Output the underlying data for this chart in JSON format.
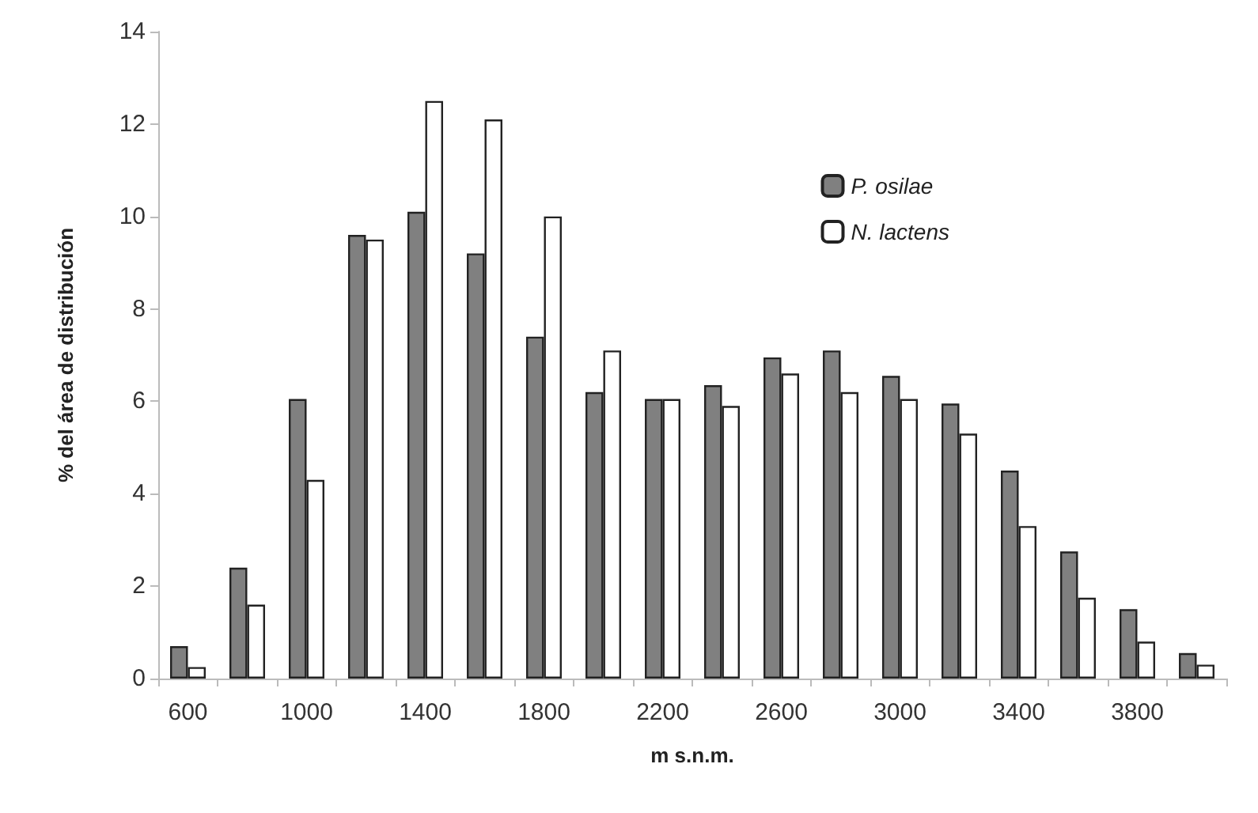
{
  "chart_data": {
    "type": "bar",
    "xlabel": "m s.n.m.",
    "ylabel": "% del área de distribución",
    "categories": [
      "600",
      null,
      "1000",
      null,
      "1400",
      null,
      "1800",
      null,
      "2200",
      null,
      "2600",
      null,
      "3000",
      null,
      "3400",
      null,
      "3800",
      null
    ],
    "series": [
      {
        "name": "P. osilae",
        "color": "#808080",
        "values": [
          0.7,
          2.4,
          6.05,
          9.6,
          10.1,
          9.2,
          7.4,
          6.2,
          6.05,
          6.35,
          6.95,
          7.1,
          6.55,
          5.95,
          4.5,
          2.75,
          1.5,
          0.55
        ]
      },
      {
        "name": "N. lactens",
        "color": "#ffffff",
        "values": [
          0.25,
          1.6,
          4.3,
          9.5,
          12.5,
          12.1,
          10.0,
          7.1,
          6.05,
          5.9,
          6.6,
          6.2,
          6.05,
          5.3,
          3.3,
          1.75,
          0.8,
          0.3
        ]
      }
    ],
    "ylim": [
      0,
      14
    ],
    "yticks": [
      0,
      2,
      4,
      6,
      8,
      10,
      12,
      14
    ],
    "grid": false,
    "legend": "top right"
  }
}
